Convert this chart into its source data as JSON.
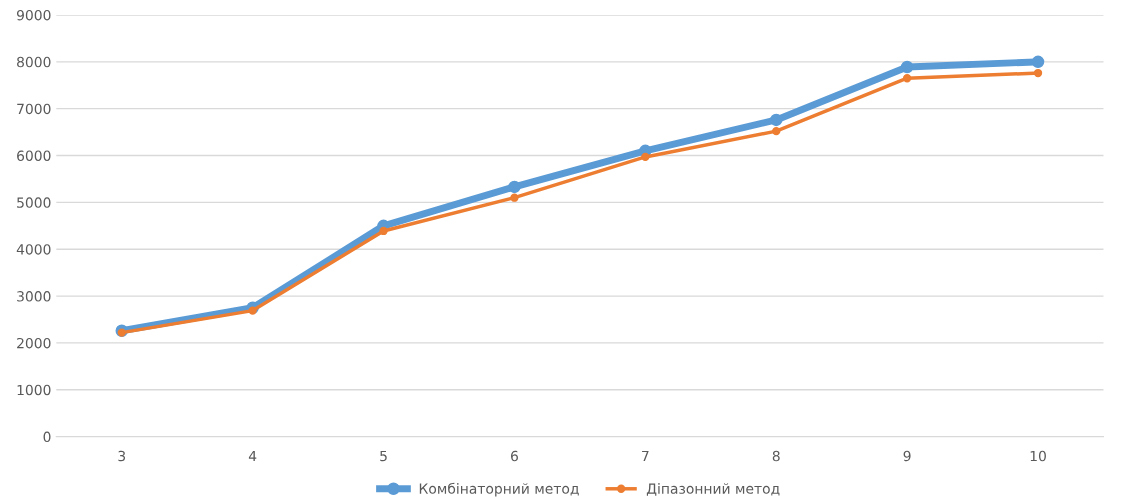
{
  "chart_data": {
    "type": "line",
    "categories": [
      "3",
      "4",
      "5",
      "6",
      "7",
      "8",
      "9",
      "10"
    ],
    "series": [
      {
        "name": "Комбінаторний метод",
        "color": "#5b9bd5",
        "values": [
          2260,
          2750,
          4500,
          5330,
          6100,
          6760,
          7890,
          8000
        ]
      },
      {
        "name": "Діпазонний метод",
        "color": "#ed7d31",
        "values": [
          2220,
          2690,
          4390,
          5100,
          5970,
          6520,
          7650,
          7760
        ]
      }
    ],
    "ylim": [
      0,
      9000
    ],
    "yticks": [
      0,
      1000,
      2000,
      3000,
      4000,
      5000,
      6000,
      7000,
      8000,
      9000
    ],
    "grid": "y",
    "legend": "bottom",
    "marker": "circle",
    "line_style": "solid"
  }
}
